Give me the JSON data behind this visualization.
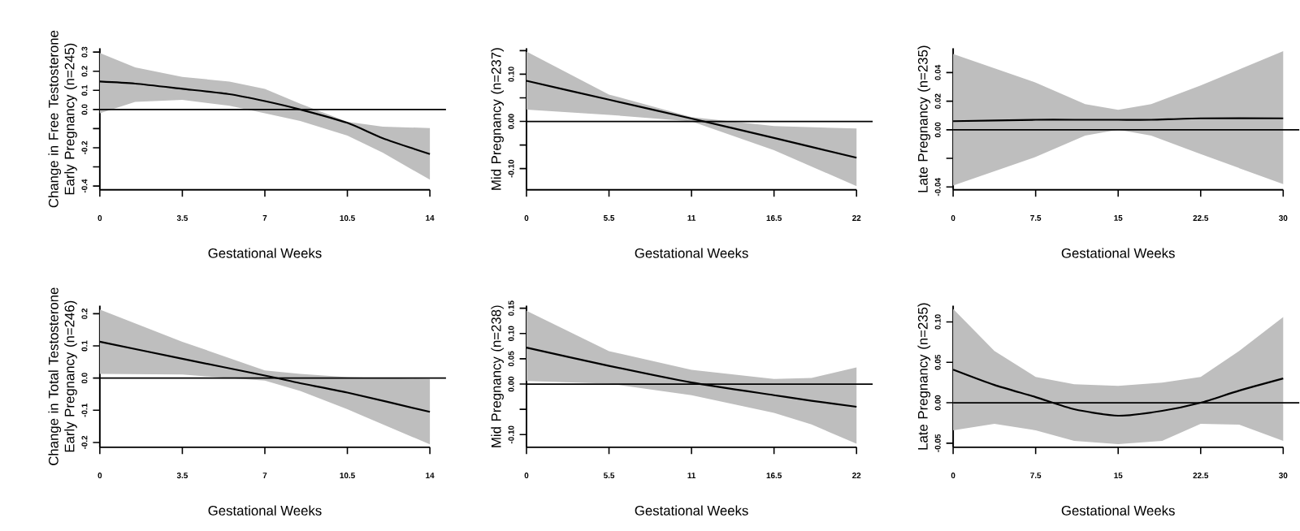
{
  "chart_data": [
    {
      "type": "line",
      "ylabel": "Change in Free Testosterone Early Pregnancy (n=245)",
      "xlabel": "Gestational Weeks",
      "x": [
        0,
        1.5,
        3.5,
        5.5,
        7,
        8.5,
        10.5,
        12,
        14
      ],
      "series": [
        {
          "color": "#000000",
          "values": [
            0.146,
            0.135,
            0.108,
            0.08,
            0.044,
            0.0,
            -0.07,
            -0.15,
            -0.233
          ],
          "upper": [
            0.295,
            0.22,
            0.17,
            0.146,
            0.108,
            0.03,
            -0.064,
            -0.09,
            -0.097
          ],
          "lower": [
            -0.02,
            0.04,
            0.05,
            0.02,
            -0.02,
            -0.06,
            -0.136,
            -0.226,
            -0.367
          ]
        }
      ],
      "xlim": [
        0,
        14
      ],
      "xticks": [
        0,
        3.5,
        7,
        10.5,
        14
      ],
      "ylim": [
        -0.42,
        0.32
      ],
      "yticks": [
        {
          "value": -0.4,
          "label": "-0.4"
        },
        {
          "value": -0.3,
          "label": null
        },
        {
          "value": -0.2,
          "label": "-0.2"
        },
        {
          "value": -0.1,
          "label": null
        },
        {
          "value": 0,
          "label": "0.0"
        },
        {
          "value": 0.1,
          "label": "0.1"
        },
        {
          "value": 0.2,
          "label": "0.2"
        },
        {
          "value": 0.3,
          "label": "0.3"
        }
      ],
      "ref_lines": [
        {
          "axis": "y",
          "value": 0
        }
      ]
    },
    {
      "type": "line",
      "ylabel": "Mid Pregnancy (n=237)",
      "xlabel": "Gestational Weeks",
      "x": [
        0,
        5.5,
        11,
        16.5,
        22
      ],
      "series": [
        {
          "color": "#000000",
          "values": [
            0.086,
            0.046,
            0.006,
            -0.035,
            -0.077
          ],
          "upper": [
            0.148,
            0.057,
            0.009,
            -0.01,
            -0.015
          ],
          "lower": [
            0.025,
            0.014,
            0.0,
            -0.061,
            -0.137
          ]
        }
      ],
      "xlim": [
        0,
        22
      ],
      "xticks": [
        0,
        5.5,
        11,
        16.5,
        22
      ],
      "ylim": [
        -0.145,
        0.155
      ],
      "yticks": [
        {
          "value": -0.1,
          "label": "-0.10"
        },
        {
          "value": -0.05,
          "label": null
        },
        {
          "value": 0,
          "label": "0.00"
        },
        {
          "value": 0.05,
          "label": null
        },
        {
          "value": 0.1,
          "label": "0.10"
        },
        {
          "value": 0.15,
          "label": null
        }
      ],
      "ref_lines": [
        {
          "axis": "y",
          "value": 0
        }
      ]
    },
    {
      "type": "line",
      "ylabel": "Late Pregnancy (n=235)",
      "xlabel": "Gestational Weeks",
      "x": [
        0,
        7.5,
        12,
        15,
        18,
        22.5,
        30
      ],
      "series": [
        {
          "color": "#000000",
          "values": [
            0.006,
            0.007,
            0.007,
            0.007,
            0.007,
            0.008,
            0.008
          ],
          "upper": [
            0.053,
            0.033,
            0.018,
            0.014,
            0.018,
            0.031,
            0.055
          ],
          "lower": [
            -0.039,
            -0.019,
            -0.004,
            0.0,
            -0.004,
            -0.017,
            -0.038
          ]
        }
      ],
      "xlim": [
        0,
        30
      ],
      "xticks": [
        0,
        7.5,
        15,
        22.5,
        30
      ],
      "ylim": [
        -0.042,
        0.057
      ],
      "yticks": [
        {
          "value": -0.04,
          "label": "-0.04"
        },
        {
          "value": -0.02,
          "label": null
        },
        {
          "value": 0,
          "label": "0.00"
        },
        {
          "value": 0.02,
          "label": "0.02"
        },
        {
          "value": 0.04,
          "label": "0.04"
        }
      ],
      "ref_lines": [
        {
          "axis": "y",
          "value": 0
        }
      ]
    },
    {
      "type": "line",
      "ylabel": "Change in Total Testosterone Early Pregnancy (n=246)",
      "xlabel": "Gestational Weeks",
      "x": [
        0,
        3.5,
        7,
        8.5,
        10.5,
        14
      ],
      "series": [
        {
          "color": "#000000",
          "values": [
            0.113,
            0.06,
            0.008,
            -0.016,
            -0.045,
            -0.105
          ],
          "upper": [
            0.213,
            0.113,
            0.024,
            0.013,
            0.003,
            -0.003
          ],
          "lower": [
            0.013,
            0.011,
            -0.008,
            -0.04,
            -0.097,
            -0.206
          ]
        }
      ],
      "xlim": [
        0,
        14
      ],
      "xticks": [
        0,
        3.5,
        7,
        10.5,
        14
      ],
      "ylim": [
        -0.215,
        0.225
      ],
      "yticks": [
        {
          "value": -0.2,
          "label": "-0.2"
        },
        {
          "value": -0.1,
          "label": "-0.1"
        },
        {
          "value": 0,
          "label": "0.0"
        },
        {
          "value": 0.1,
          "label": "0.1"
        },
        {
          "value": 0.2,
          "label": "0.2"
        }
      ],
      "ref_lines": [
        {
          "axis": "y",
          "value": 0
        }
      ]
    },
    {
      "type": "line",
      "ylabel": "Mid Pregnancy (n=238)",
      "xlabel": "Gestational Weeks",
      "x": [
        0,
        5.5,
        11,
        16.5,
        19,
        22
      ],
      "series": [
        {
          "color": "#000000",
          "values": [
            0.072,
            0.036,
            0.003,
            -0.022,
            -0.033,
            -0.045
          ],
          "upper": [
            0.145,
            0.065,
            0.028,
            0.01,
            0.012,
            0.033
          ],
          "lower": [
            0.006,
            0.001,
            -0.022,
            -0.057,
            -0.08,
            -0.118
          ]
        }
      ],
      "xlim": [
        0,
        22
      ],
      "xticks": [
        0,
        5.5,
        11,
        16.5,
        22
      ],
      "ylim": [
        -0.125,
        0.155
      ],
      "yticks": [
        {
          "value": -0.1,
          "label": "-0.10"
        },
        {
          "value": -0.05,
          "label": null
        },
        {
          "value": 0,
          "label": "0.00"
        },
        {
          "value": 0.05,
          "label": "0.05"
        },
        {
          "value": 0.1,
          "label": "0.10"
        },
        {
          "value": 0.15,
          "label": "0.15"
        }
      ],
      "ref_lines": [
        {
          "axis": "y",
          "value": 0
        }
      ]
    },
    {
      "type": "line",
      "ylabel": "Late Pregnancy (n=235)",
      "xlabel": "Gestational Weeks",
      "x": [
        0,
        3.75,
        7.5,
        11,
        15,
        19,
        22.5,
        26,
        30
      ],
      "series": [
        {
          "color": "#000000",
          "values": [
            0.041,
            0.022,
            0.007,
            -0.008,
            -0.016,
            -0.01,
            0.0,
            0.015,
            0.03
          ],
          "upper": [
            0.116,
            0.064,
            0.032,
            0.023,
            0.021,
            0.025,
            0.032,
            0.064,
            0.106
          ],
          "lower": [
            -0.034,
            -0.026,
            -0.034,
            -0.047,
            -0.051,
            -0.047,
            -0.026,
            -0.027,
            -0.047
          ]
        }
      ],
      "xlim": [
        0,
        30
      ],
      "xticks": [
        0,
        7.5,
        15,
        22.5,
        30
      ],
      "ylim": [
        -0.055,
        0.12
      ],
      "yticks": [
        {
          "value": -0.05,
          "label": "-0.05"
        },
        {
          "value": 0,
          "label": "0.00"
        },
        {
          "value": 0.05,
          "label": "0.05"
        },
        {
          "value": 0.1,
          "label": "0.10"
        }
      ],
      "ref_lines": [
        {
          "axis": "y",
          "value": 0
        }
      ]
    }
  ]
}
